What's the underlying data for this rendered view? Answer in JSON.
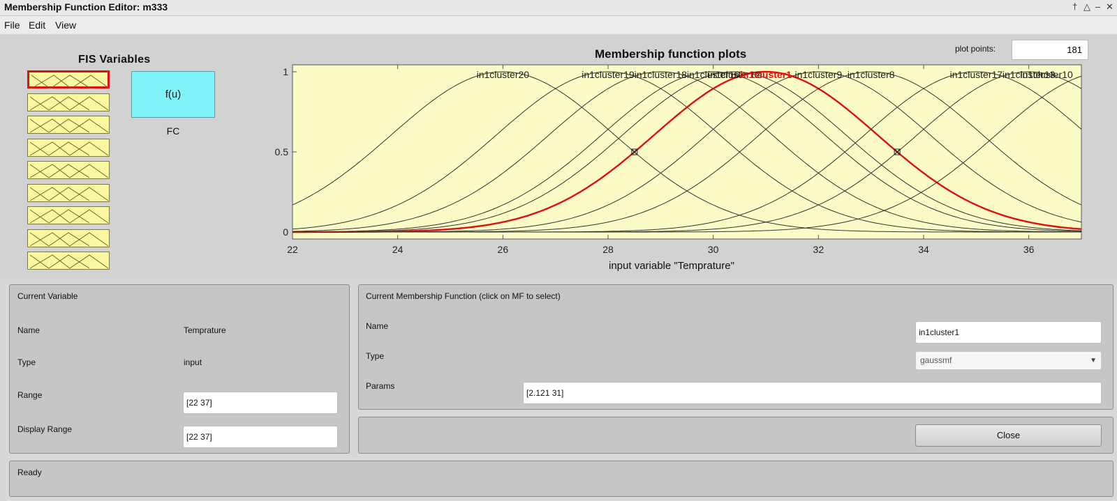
{
  "window": {
    "title": "Membership Function Editor: m333"
  },
  "menu": [
    "File",
    "Edit",
    "View"
  ],
  "fis_variables": {
    "title": "FIS Variables",
    "inputs_count": 9,
    "selected_index": 0,
    "output_box_label": "f(u)",
    "output_name": "FC"
  },
  "plot_points": {
    "label": "plot points:",
    "value": "181"
  },
  "chart_data": {
    "type": "line",
    "title": "Membership function plots",
    "xlabel": "input variable \"Temprature\"",
    "ylabel": "",
    "xlim": [
      22,
      37
    ],
    "ylim": [
      0,
      1
    ],
    "xticks": [
      22,
      24,
      26,
      28,
      30,
      32,
      34,
      36
    ],
    "yticks": [
      0,
      0.5,
      1
    ],
    "sigma": 2.121,
    "highlight_color": "#e01010",
    "line_color": "#333333",
    "background_color": "#fbfbc8",
    "series": [
      {
        "name": "in1cluster20",
        "mean": 26
      },
      {
        "name": "in1cluster19",
        "mean": 28
      },
      {
        "name": "in1cluster18",
        "mean": 29
      },
      {
        "name": "in1cluster16",
        "mean": 30
      },
      {
        "name": "in1cluster12",
        "mean": 30.4
      },
      {
        "name": "in1cluster1",
        "mean": 31,
        "selected": true
      },
      {
        "name": "in1cluster9",
        "mean": 32
      },
      {
        "name": "in1cluster8",
        "mean": 33
      },
      {
        "name": "in1cluster17",
        "mean": 35
      },
      {
        "name": "in1cluster13",
        "mean": 36
      },
      {
        "name": "in1cluster10",
        "mean": 37.5
      }
    ]
  },
  "current_variable": {
    "heading": "Current Variable",
    "name_label": "Name",
    "name_value": "Temprature",
    "type_label": "Type",
    "type_value": "input",
    "range_label": "Range",
    "range_value": "[22 37]",
    "display_range_label": "Display Range",
    "display_range_value": "[22 37]"
  },
  "current_mf": {
    "heading": "Current Membership Function (click on MF to select)",
    "name_label": "Name",
    "name_value": "in1cluster1",
    "type_label": "Type",
    "type_value": "gaussmf",
    "params_label": "Params",
    "params_value": "[2.121 31]"
  },
  "close_label": "Close",
  "status": "Ready"
}
